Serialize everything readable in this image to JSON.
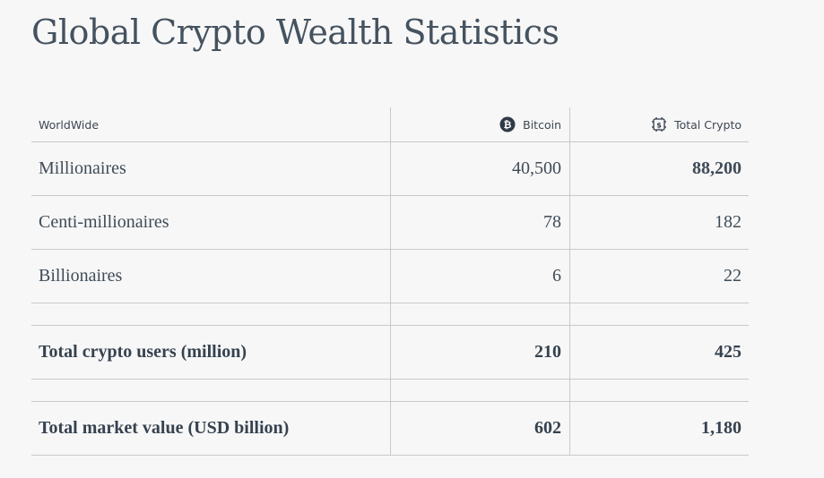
{
  "page": {
    "title": "Global Crypto Wealth Statistics"
  },
  "table": {
    "headers": {
      "category": "WorldWide",
      "bitcoin": "Bitcoin",
      "total_crypto": "Total Crypto"
    },
    "rows": [
      {
        "label": "Millionaires",
        "bitcoin": "40,500",
        "total_crypto": "88,200"
      },
      {
        "label": "Centi-millionaires",
        "bitcoin": "78",
        "total_crypto": "182"
      },
      {
        "label": "Billionaires",
        "bitcoin": "6",
        "total_crypto": "22"
      }
    ],
    "totals": [
      {
        "label": "Total crypto users (million)",
        "bitcoin": "210",
        "total_crypto": "425"
      },
      {
        "label": "Total market value (USD billion)",
        "bitcoin": "602",
        "total_crypto": "1,180"
      }
    ]
  },
  "icons": {
    "bitcoin": "bitcoin-icon",
    "total_crypto": "crypto-chip-icon"
  },
  "colors": {
    "background": "#f7f7f7",
    "text": "#3f4b57",
    "rule": "#c9c9c9"
  }
}
